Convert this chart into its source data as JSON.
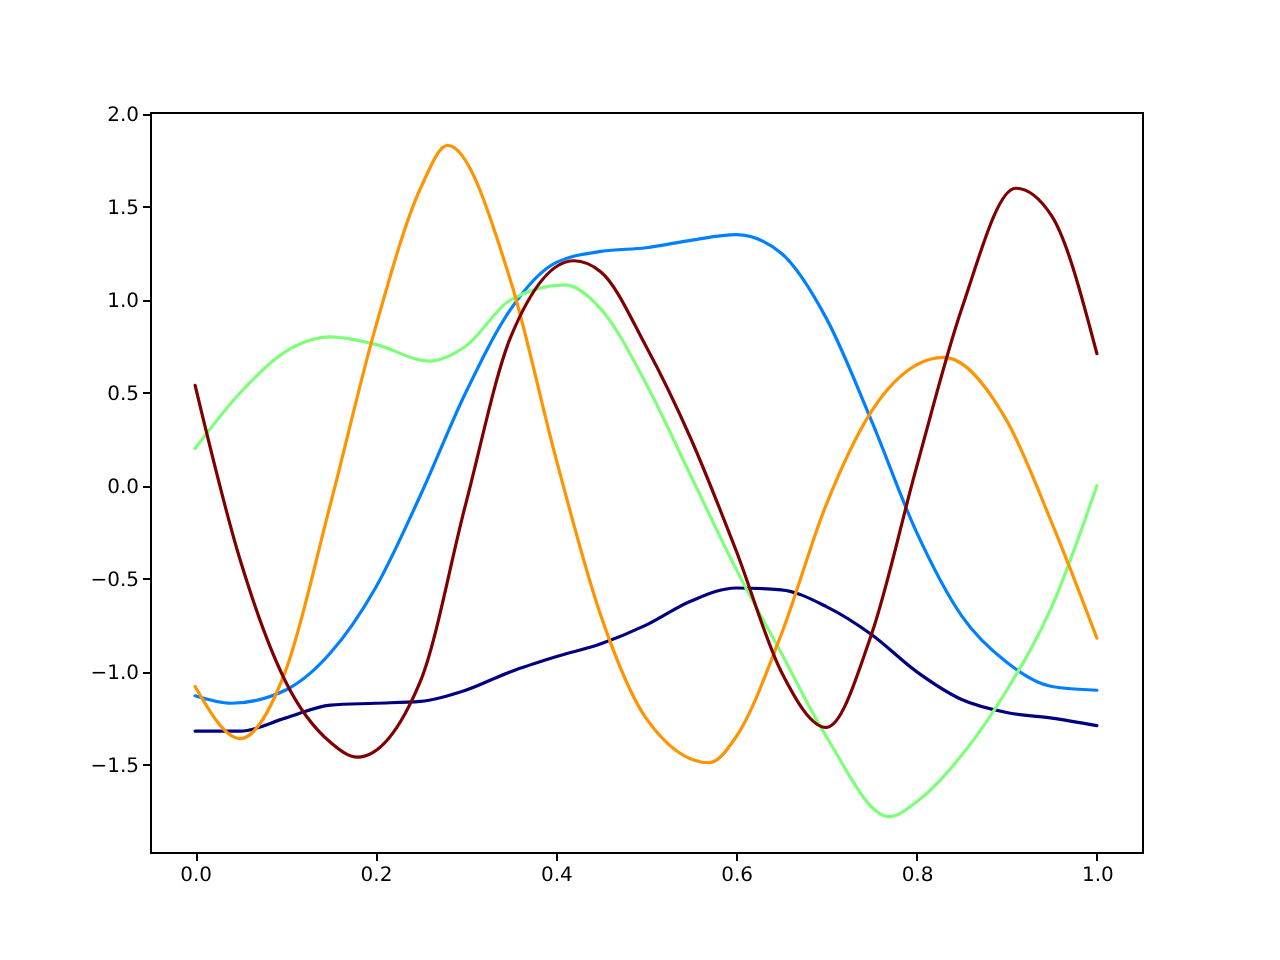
{
  "chart_data": {
    "type": "line",
    "x": [
      0,
      0.05,
      0.1,
      0.15,
      0.2,
      0.25,
      0.3,
      0.35,
      0.4,
      0.45,
      0.5,
      0.55,
      0.6,
      0.65,
      0.7,
      0.75,
      0.8,
      0.85,
      0.9,
      0.95,
      1.0
    ],
    "series": [
      {
        "color": "#00007f",
        "values": [
          -1.32,
          -1.32,
          -1.25,
          -1.18,
          -1.17,
          -1.16,
          -1.1,
          -1.0,
          -0.92,
          -0.85,
          -0.75,
          -0.62,
          -0.55,
          -0.56,
          -0.65,
          -0.8,
          -1.0,
          -1.15,
          -1.22,
          -1.25,
          -1.29
        ]
      },
      {
        "color": "#0080ff",
        "x": [
          0,
          0.04,
          0.1,
          0.15,
          0.2,
          0.25,
          0.3,
          0.35,
          0.4,
          0.45,
          0.5,
          0.55,
          0.6,
          0.65,
          0.7,
          0.75,
          0.8,
          0.85,
          0.9,
          0.95,
          1.0
        ],
        "values": [
          -1.13,
          -1.17,
          -1.1,
          -0.9,
          -0.55,
          -0.05,
          0.5,
          0.95,
          1.2,
          1.26,
          1.28,
          1.32,
          1.35,
          1.25,
          0.9,
          0.35,
          -0.25,
          -0.7,
          -0.95,
          -1.08,
          -1.1
        ]
      },
      {
        "color": "#7dff7a",
        "x": [
          0,
          0.05,
          0.1,
          0.15,
          0.2,
          0.26,
          0.3,
          0.35,
          0.41,
          0.45,
          0.5,
          0.55,
          0.6,
          0.65,
          0.7,
          0.77,
          0.8,
          0.85,
          0.9,
          0.95,
          1.0
        ],
        "values": [
          0.2,
          0.5,
          0.72,
          0.8,
          0.76,
          0.67,
          0.75,
          1.0,
          1.08,
          0.95,
          0.55,
          0.05,
          -0.45,
          -0.9,
          -1.35,
          -1.78,
          -1.7,
          -1.45,
          -1.1,
          -0.65,
          0.0
        ]
      },
      {
        "color": "#ff9400",
        "x": [
          0,
          0.05,
          0.1,
          0.15,
          0.2,
          0.25,
          0.28,
          0.35,
          0.4,
          0.45,
          0.5,
          0.57,
          0.6,
          0.65,
          0.7,
          0.75,
          0.8,
          0.83,
          0.9,
          0.95,
          1.0
        ],
        "values": [
          -1.08,
          -1.36,
          -1.0,
          -0.1,
          0.85,
          1.6,
          1.83,
          1.1,
          0.15,
          -0.7,
          -1.25,
          -1.49,
          -1.35,
          -0.8,
          -0.1,
          0.4,
          0.65,
          0.69,
          0.35,
          -0.2,
          -0.82
        ]
      },
      {
        "color": "#7f0000",
        "x": [
          0,
          0.05,
          0.1,
          0.15,
          0.18,
          0.25,
          0.3,
          0.35,
          0.42,
          0.45,
          0.5,
          0.55,
          0.6,
          0.65,
          0.7,
          0.75,
          0.8,
          0.85,
          0.91,
          0.95,
          1.0
        ],
        "values": [
          0.54,
          -0.4,
          -1.05,
          -1.38,
          -1.46,
          -1.05,
          -0.1,
          0.8,
          1.21,
          1.15,
          0.75,
          0.25,
          -0.35,
          -1.0,
          -1.3,
          -0.8,
          0.1,
          0.95,
          1.6,
          1.45,
          0.71
        ]
      }
    ],
    "xlim": [
      -0.05,
      1.05
    ],
    "ylim": [
      -1.97,
      2.01
    ],
    "xticks": [
      {
        "value": 0,
        "label": "0.0"
      },
      {
        "value": 0.2,
        "label": "0.2"
      },
      {
        "value": 0.4,
        "label": "0.4"
      },
      {
        "value": 0.6,
        "label": "0.6"
      },
      {
        "value": 0.8,
        "label": "0.8"
      },
      {
        "value": 1.0,
        "label": "1.0"
      }
    ],
    "yticks": [
      {
        "value": -1.5,
        "label": "−1.5"
      },
      {
        "value": -1.0,
        "label": "−1.0"
      },
      {
        "value": -0.5,
        "label": "−0.5"
      },
      {
        "value": 0.0,
        "label": "0.0"
      },
      {
        "value": 0.5,
        "label": "0.5"
      },
      {
        "value": 1.0,
        "label": "1.0"
      },
      {
        "value": 1.5,
        "label": "1.5"
      },
      {
        "value": 2.0,
        "label": "2.0"
      }
    ],
    "line_style": "solid",
    "grid": false,
    "legend": false
  }
}
